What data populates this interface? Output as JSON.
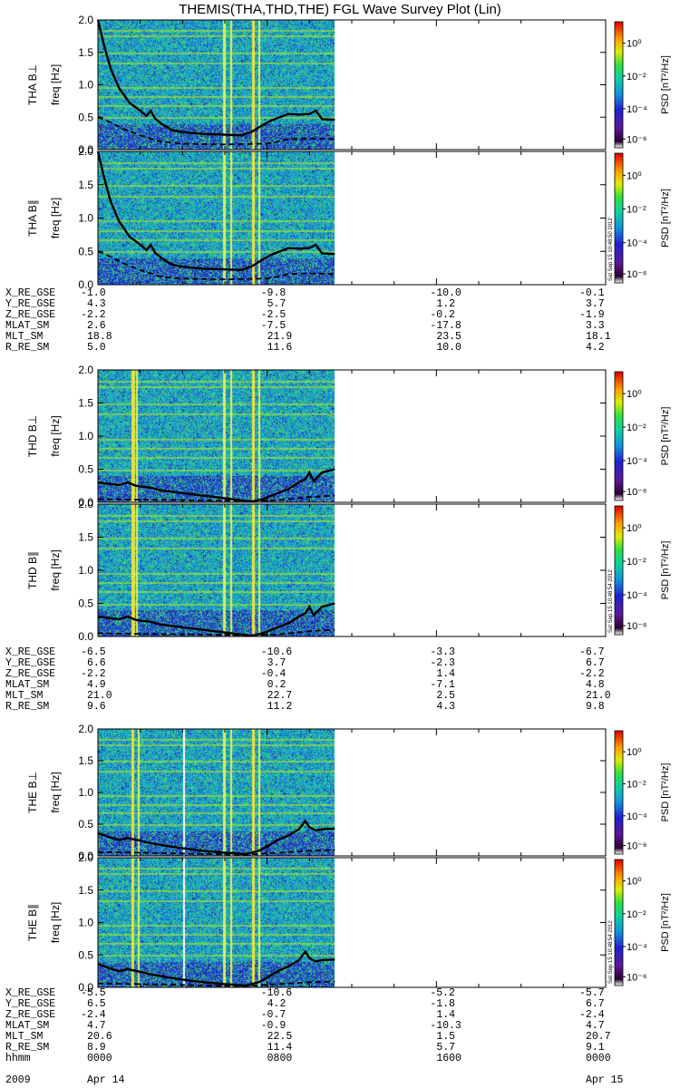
{
  "title": "THEMIS(THA,THD,THE) FGL Wave Survey Plot (Lin)",
  "colors": {
    "line": "#000000",
    "bg": "#ffffff"
  },
  "chart_data": {
    "type": "heatmap",
    "x_range_hours": [
      0,
      24
    ],
    "y_range_hz": [
      0,
      2.0
    ],
    "y_ticks": [
      "0.0",
      "0.5",
      "1.0",
      "1.5",
      "2.0"
    ],
    "y_axis_label": "freq [Hz]",
    "colorbar": {
      "label": "PSD [nT²/Hz]",
      "ticks": [
        "10⁰",
        "10⁻²",
        "10⁻⁴",
        "10⁻⁶"
      ]
    },
    "data_end_hour": 11.2,
    "panels": [
      {
        "label": "THA B⊥",
        "probe": "THA",
        "solid_line": [
          [
            0,
            2.0
          ],
          [
            0.3,
            1.6
          ],
          [
            0.6,
            1.25
          ],
          [
            1.0,
            0.95
          ],
          [
            1.5,
            0.72
          ],
          [
            2.0,
            0.6
          ],
          [
            2.3,
            0.52
          ],
          [
            2.5,
            0.6
          ],
          [
            2.7,
            0.48
          ],
          [
            3.0,
            0.4
          ],
          [
            3.5,
            0.3
          ],
          [
            4.0,
            0.27
          ],
          [
            5.0,
            0.24
          ],
          [
            6.0,
            0.23
          ],
          [
            6.8,
            0.22
          ],
          [
            7.3,
            0.28
          ],
          [
            7.8,
            0.38
          ],
          [
            8.2,
            0.45
          ],
          [
            8.6,
            0.5
          ],
          [
            9.0,
            0.55
          ],
          [
            9.5,
            0.54
          ],
          [
            10.0,
            0.55
          ],
          [
            10.3,
            0.6
          ],
          [
            10.6,
            0.47
          ],
          [
            11.2,
            0.46
          ]
        ],
        "dashed_line": [
          [
            0,
            0.5
          ],
          [
            0.6,
            0.42
          ],
          [
            1.2,
            0.32
          ],
          [
            2.0,
            0.22
          ],
          [
            3.0,
            0.12
          ],
          [
            4.0,
            0.09
          ],
          [
            6.0,
            0.08
          ],
          [
            7.6,
            0.09
          ],
          [
            8.2,
            0.1
          ],
          [
            8.6,
            0.13
          ],
          [
            9.0,
            0.16
          ],
          [
            10.0,
            0.17
          ],
          [
            11.2,
            0.16
          ]
        ]
      },
      {
        "label": "THA B∥",
        "probe": "THA",
        "stamp": "Sat Sep 15 10:48:50 2012",
        "solid_line": [
          [
            0,
            2.0
          ],
          [
            0.3,
            1.6
          ],
          [
            0.6,
            1.25
          ],
          [
            1.0,
            0.95
          ],
          [
            1.5,
            0.72
          ],
          [
            2.0,
            0.6
          ],
          [
            2.3,
            0.52
          ],
          [
            2.5,
            0.6
          ],
          [
            2.7,
            0.48
          ],
          [
            3.0,
            0.4
          ],
          [
            3.5,
            0.3
          ],
          [
            4.0,
            0.27
          ],
          [
            5.0,
            0.24
          ],
          [
            6.0,
            0.23
          ],
          [
            6.8,
            0.22
          ],
          [
            7.3,
            0.28
          ],
          [
            7.8,
            0.38
          ],
          [
            8.2,
            0.45
          ],
          [
            8.6,
            0.5
          ],
          [
            9.0,
            0.55
          ],
          [
            9.5,
            0.54
          ],
          [
            10.0,
            0.55
          ],
          [
            10.3,
            0.6
          ],
          [
            10.6,
            0.47
          ],
          [
            11.2,
            0.46
          ]
        ],
        "dashed_line": [
          [
            0,
            0.5
          ],
          [
            0.6,
            0.42
          ],
          [
            1.2,
            0.32
          ],
          [
            2.0,
            0.22
          ],
          [
            3.0,
            0.12
          ],
          [
            4.0,
            0.09
          ],
          [
            6.0,
            0.08
          ],
          [
            7.6,
            0.09
          ],
          [
            8.2,
            0.1
          ],
          [
            8.6,
            0.13
          ],
          [
            9.0,
            0.16
          ],
          [
            10.0,
            0.17
          ],
          [
            11.2,
            0.16
          ]
        ]
      },
      {
        "label": "THD B⊥",
        "probe": "THD",
        "solid_line": [
          [
            0,
            0.3
          ],
          [
            0.5,
            0.28
          ],
          [
            1.0,
            0.26
          ],
          [
            1.4,
            0.3
          ],
          [
            1.8,
            0.25
          ],
          [
            2.5,
            0.22
          ],
          [
            3.0,
            0.18
          ],
          [
            4.0,
            0.14
          ],
          [
            5.0,
            0.1
          ],
          [
            6.0,
            0.06
          ],
          [
            6.8,
            0.03
          ],
          [
            7.3,
            0.01
          ],
          [
            7.8,
            0.05
          ],
          [
            8.2,
            0.1
          ],
          [
            8.6,
            0.15
          ],
          [
            9.0,
            0.2
          ],
          [
            9.5,
            0.3
          ],
          [
            9.8,
            0.35
          ],
          [
            10.0,
            0.45
          ],
          [
            10.2,
            0.32
          ],
          [
            10.6,
            0.45
          ],
          [
            11.2,
            0.5
          ]
        ],
        "dashed_line": [
          [
            0,
            0.05
          ],
          [
            2.0,
            0.04
          ],
          [
            5.0,
            0.03
          ],
          [
            7.0,
            0.02
          ],
          [
            8.5,
            0.03
          ],
          [
            10.0,
            0.08
          ],
          [
            11.2,
            0.1
          ]
        ]
      },
      {
        "label": "THD B∥",
        "probe": "THD",
        "stamp": "Sat Sep 15 10:48:54 2012",
        "solid_line": [
          [
            0,
            0.3
          ],
          [
            0.5,
            0.28
          ],
          [
            1.0,
            0.26
          ],
          [
            1.4,
            0.3
          ],
          [
            1.8,
            0.25
          ],
          [
            2.5,
            0.22
          ],
          [
            3.0,
            0.18
          ],
          [
            4.0,
            0.14
          ],
          [
            5.0,
            0.1
          ],
          [
            6.0,
            0.06
          ],
          [
            6.8,
            0.03
          ],
          [
            7.3,
            0.01
          ],
          [
            7.8,
            0.05
          ],
          [
            8.2,
            0.1
          ],
          [
            8.6,
            0.15
          ],
          [
            9.0,
            0.2
          ],
          [
            9.5,
            0.3
          ],
          [
            9.8,
            0.35
          ],
          [
            10.0,
            0.45
          ],
          [
            10.2,
            0.32
          ],
          [
            10.6,
            0.45
          ],
          [
            11.2,
            0.5
          ]
        ],
        "dashed_line": [
          [
            0,
            0.05
          ],
          [
            2.0,
            0.04
          ],
          [
            5.0,
            0.03
          ],
          [
            7.0,
            0.02
          ],
          [
            8.5,
            0.03
          ],
          [
            10.0,
            0.08
          ],
          [
            11.2,
            0.1
          ]
        ]
      },
      {
        "label": "THE B⊥",
        "probe": "THE",
        "solid_line": [
          [
            0,
            0.36
          ],
          [
            0.5,
            0.3
          ],
          [
            1.0,
            0.25
          ],
          [
            1.4,
            0.28
          ],
          [
            2.0,
            0.24
          ],
          [
            2.5,
            0.2
          ],
          [
            3.0,
            0.17
          ],
          [
            4.0,
            0.12
          ],
          [
            5.0,
            0.08
          ],
          [
            6.0,
            0.05
          ],
          [
            7.0,
            0.03
          ],
          [
            7.6,
            0.08
          ],
          [
            8.0,
            0.15
          ],
          [
            8.5,
            0.25
          ],
          [
            9.0,
            0.32
          ],
          [
            9.5,
            0.42
          ],
          [
            9.8,
            0.55
          ],
          [
            10.0,
            0.45
          ],
          [
            10.3,
            0.4
          ],
          [
            10.6,
            0.42
          ],
          [
            11.2,
            0.43
          ]
        ],
        "dashed_line": [
          [
            0,
            0.06
          ],
          [
            2.0,
            0.05
          ],
          [
            5.0,
            0.03
          ],
          [
            7.0,
            0.02
          ],
          [
            8.5,
            0.05
          ],
          [
            10.0,
            0.08
          ],
          [
            11.2,
            0.09
          ]
        ]
      },
      {
        "label": "THE B∥",
        "probe": "THE",
        "stamp": "Sat Sep 15 10:48:54 2012",
        "solid_line": [
          [
            0,
            0.36
          ],
          [
            0.5,
            0.3
          ],
          [
            1.0,
            0.25
          ],
          [
            1.4,
            0.28
          ],
          [
            2.0,
            0.24
          ],
          [
            2.5,
            0.2
          ],
          [
            3.0,
            0.17
          ],
          [
            4.0,
            0.12
          ],
          [
            5.0,
            0.08
          ],
          [
            6.0,
            0.05
          ],
          [
            7.0,
            0.03
          ],
          [
            7.6,
            0.08
          ],
          [
            8.0,
            0.15
          ],
          [
            8.5,
            0.25
          ],
          [
            9.0,
            0.32
          ],
          [
            9.5,
            0.42
          ],
          [
            9.8,
            0.55
          ],
          [
            10.0,
            0.45
          ],
          [
            10.3,
            0.4
          ],
          [
            10.6,
            0.42
          ],
          [
            11.2,
            0.43
          ]
        ],
        "dashed_line": [
          [
            0,
            0.06
          ],
          [
            2.0,
            0.05
          ],
          [
            5.0,
            0.03
          ],
          [
            7.0,
            0.02
          ],
          [
            8.5,
            0.05
          ],
          [
            10.0,
            0.08
          ],
          [
            11.2,
            0.09
          ]
        ]
      }
    ],
    "ephemeris": [
      {
        "rows": [
          {
            "label": "X_RE_GSE",
            "values": [
              "-1.0",
              "-9.8",
              "-10.0",
              "-0.1"
            ]
          },
          {
            "label": "Y_RE_GSE",
            "values": [
              "4.3",
              "5.7",
              "1.2",
              "3.7"
            ]
          },
          {
            "label": "Z_RE_GSE",
            "values": [
              "-2.2",
              "-2.5",
              "-0.2",
              "-1.9"
            ]
          },
          {
            "label": "MLAT_SM",
            "values": [
              "2.6",
              "-7.5",
              "-17.8",
              "3.3"
            ]
          },
          {
            "label": "MLT_SM",
            "values": [
              "18.8",
              "21.9",
              "23.5",
              "18.1"
            ]
          },
          {
            "label": "R_RE_SM",
            "values": [
              "5.0",
              "11.6",
              "10.0",
              "4.2"
            ]
          }
        ]
      },
      {
        "rows": [
          {
            "label": "X_RE_GSE",
            "values": [
              "-6.5",
              "-10.6",
              "-3.3",
              "-6.7"
            ]
          },
          {
            "label": "Y_RE_GSE",
            "values": [
              "6.6",
              "3.7",
              "-2.3",
              "6.7"
            ]
          },
          {
            "label": "Z_RE_GSE",
            "values": [
              "-2.2",
              "-0.4",
              "1.4",
              "-2.2"
            ]
          },
          {
            "label": "MLAT_SM",
            "values": [
              "4.9",
              "0.2",
              "-7.1",
              "4.8"
            ]
          },
          {
            "label": "MLT_SM",
            "values": [
              "21.0",
              "22.7",
              "2.5",
              "21.0"
            ]
          },
          {
            "label": "R_RE_SM",
            "values": [
              "9.6",
              "11.2",
              "4.3",
              "9.8"
            ]
          }
        ]
      },
      {
        "rows": [
          {
            "label": "X_RE_GSE",
            "values": [
              "-5.5",
              "-10.6",
              "-5.2",
              "-5.7"
            ]
          },
          {
            "label": "Y_RE_GSE",
            "values": [
              "6.5",
              "4.2",
              "-1.8",
              "6.7"
            ]
          },
          {
            "label": "Z_RE_GSE",
            "values": [
              "-2.4",
              "-0.7",
              "1.4",
              "-2.4"
            ]
          },
          {
            "label": "MLAT_SM",
            "values": [
              "4.7",
              "-0.9",
              "-10.3",
              "4.7"
            ]
          },
          {
            "label": "MLT_SM",
            "values": [
              "20.6",
              "22.5",
              "1.5",
              "20.7"
            ]
          },
          {
            "label": "R_RE_SM",
            "values": [
              "8.9",
              "11.4",
              "5.7",
              "9.1"
            ]
          },
          {
            "label": "hhmm",
            "values": [
              "0000",
              "0800",
              "1600",
              "0000"
            ]
          }
        ]
      }
    ],
    "date_labels": {
      "year": "2009",
      "start": "Apr 14",
      "end": "Apr 15"
    }
  }
}
